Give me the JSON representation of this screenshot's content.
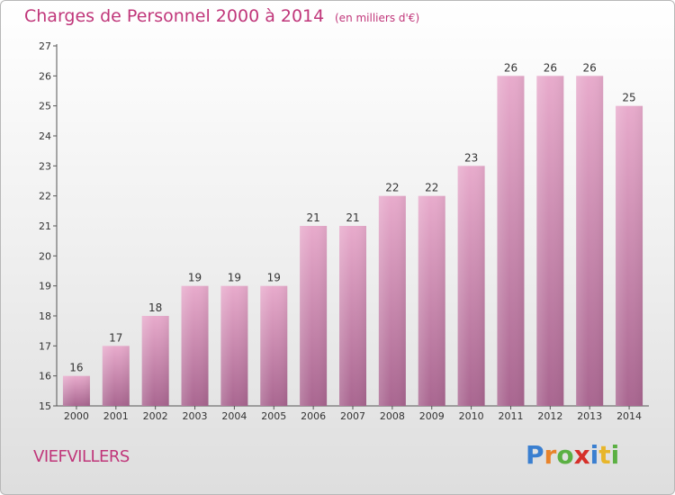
{
  "header": {
    "title": "Charges de Personnel 2000 à 2014",
    "subtitle": "(en milliers d'€)"
  },
  "footer": {
    "commune": "VIEFVILLERS",
    "logo_letters": [
      "P",
      "r",
      "o",
      "x",
      "i",
      "t",
      "i"
    ],
    "logo_colors": [
      "#3a7fd0",
      "#e8832a",
      "#5bb043",
      "#d6302a",
      "#3a7fd0",
      "#e8b62a",
      "#5bb043"
    ]
  },
  "colors": {
    "bar_top": "#e8abcc",
    "bar_bottom": "#a96690",
    "accent": "#c0367a"
  },
  "chart_data": {
    "type": "bar",
    "title": "Charges de Personnel 2000 à 2014",
    "subtitle": "(en milliers d'€)",
    "categories": [
      "2000",
      "2001",
      "2002",
      "2003",
      "2004",
      "2005",
      "2006",
      "2007",
      "2008",
      "2009",
      "2010",
      "2011",
      "2012",
      "2013",
      "2014"
    ],
    "values": [
      16,
      17,
      18,
      19,
      19,
      19,
      21,
      21,
      22,
      22,
      23,
      26,
      26,
      26,
      25
    ],
    "ylim": [
      15,
      27
    ],
    "yticks": [
      15,
      16,
      17,
      18,
      19,
      20,
      21,
      22,
      23,
      24,
      25,
      26,
      27
    ],
    "xlabel": "",
    "ylabel": "",
    "grid": false,
    "legend": "none"
  }
}
